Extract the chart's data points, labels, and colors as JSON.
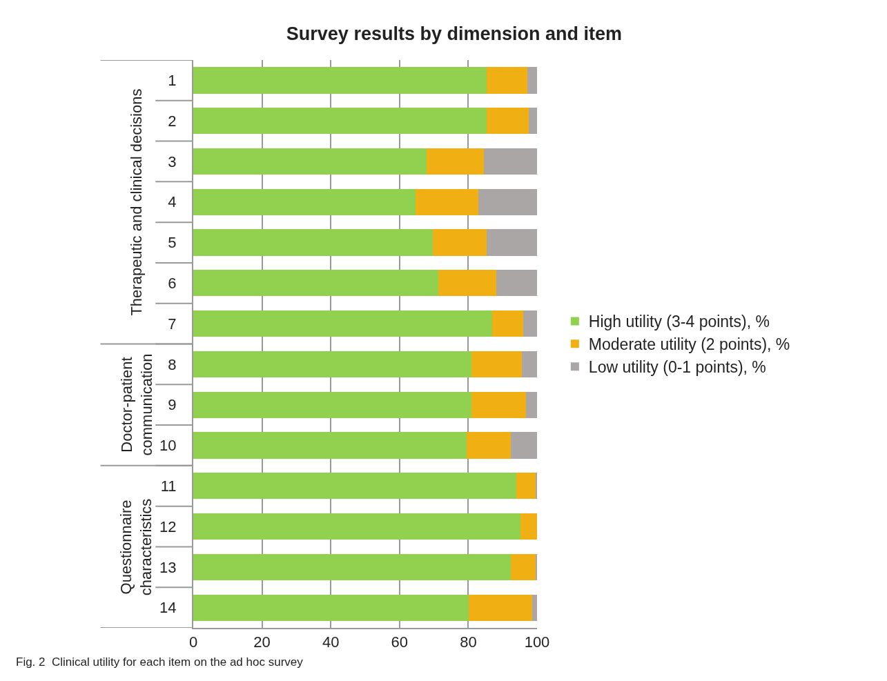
{
  "chart_data": {
    "type": "bar",
    "orientation": "horizontal",
    "stacked": true,
    "title": "Survey results by dimension and item",
    "categories": [
      "1",
      "2",
      "3",
      "4",
      "5",
      "6",
      "7",
      "8",
      "9",
      "10",
      "11",
      "12",
      "13",
      "14"
    ],
    "series": [
      {
        "name": "High utility (3-4 points), %",
        "color": "#92d050",
        "values": [
          85.4,
          85.4,
          67.8,
          64.7,
          69.7,
          71.3,
          86.9,
          81.0,
          81.0,
          79.5,
          94.0,
          95.1,
          92.4,
          80.2
        ]
      },
      {
        "name": "Moderate utility (2 points), %",
        "color": "#f0b014",
        "values": [
          11.7,
          12.1,
          16.8,
          18.3,
          15.7,
          16.8,
          9.0,
          14.5,
          15.7,
          12.9,
          5.5,
          4.9,
          7.1,
          18.4
        ]
      },
      {
        "name": "Low utility (0-1 points), %",
        "color": "#aaa6a6",
        "values": [
          2.9,
          2.5,
          15.4,
          17.0,
          14.6,
          11.9,
          4.1,
          4.5,
          3.3,
          7.6,
          0.5,
          0,
          0.5,
          1.4
        ]
      }
    ],
    "xlim": [
      0,
      100
    ],
    "xticks": [
      0,
      20,
      40,
      60,
      80,
      100
    ],
    "grid": "x",
    "legend": "right",
    "annotations": [
      "Therapeutic and clinical decisions",
      "Doctor-patient communication",
      "Questionnaire characteristics",
      "Fig. 2  Clinical utility for each item on the ad hoc survey"
    ]
  }
}
